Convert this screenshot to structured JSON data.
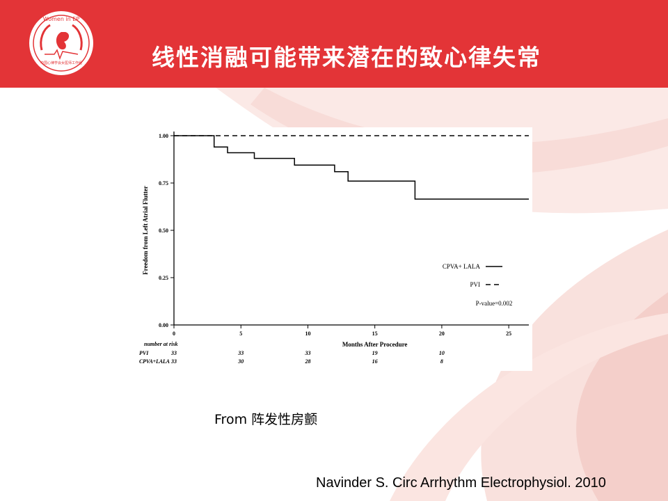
{
  "header": {
    "title": "线性消融可能带来潜在的致心律失常",
    "logo_text": "Women in EP",
    "logo_subtext": "中国心律学会女医师工作组"
  },
  "colors": {
    "header_red": "#e33437",
    "swirl_pink": "#f6d7d3"
  },
  "chart_data": {
    "type": "line",
    "xlabel": "Months After Procedure",
    "ylabel": "Freedom from Left Atrial Flutter",
    "xlim": [
      0,
      26.5
    ],
    "ylim": [
      0,
      1.0
    ],
    "x_ticks": [
      0,
      5,
      10,
      15,
      20,
      25
    ],
    "y_ticks": [
      "0.00",
      "0.25",
      "0.50",
      "0.75",
      "1.00"
    ],
    "series": [
      {
        "name": "CPVA+ LALA",
        "style": "solid",
        "step_points": [
          [
            0,
            1.0
          ],
          [
            3,
            1.0
          ],
          [
            3,
            0.94
          ],
          [
            4,
            0.94
          ],
          [
            4,
            0.91
          ],
          [
            6,
            0.91
          ],
          [
            6,
            0.88
          ],
          [
            9,
            0.88
          ],
          [
            9,
            0.845
          ],
          [
            12,
            0.845
          ],
          [
            12,
            0.81
          ],
          [
            13,
            0.81
          ],
          [
            13,
            0.76
          ],
          [
            18,
            0.76
          ],
          [
            18,
            0.665
          ],
          [
            26.5,
            0.665
          ]
        ]
      },
      {
        "name": "PVI",
        "style": "dashed",
        "step_points": [
          [
            0,
            1.0
          ],
          [
            26.5,
            1.0
          ]
        ]
      }
    ],
    "annotation": "P-value=0.002",
    "risk_table": {
      "header": "number at risk",
      "rows": [
        {
          "label": "PVI",
          "values": [
            "33",
            "33",
            "33",
            "19",
            "10"
          ]
        },
        {
          "label": "CPVA+LALA",
          "values": [
            "33",
            "30",
            "28",
            "16",
            "8"
          ]
        }
      ],
      "at_months": [
        0,
        5,
        10,
        15,
        20
      ]
    }
  },
  "source_note": "From 阵发性房颤",
  "citation": "Navinder S. Circ Arrhythm Electrophysiol. 2010"
}
